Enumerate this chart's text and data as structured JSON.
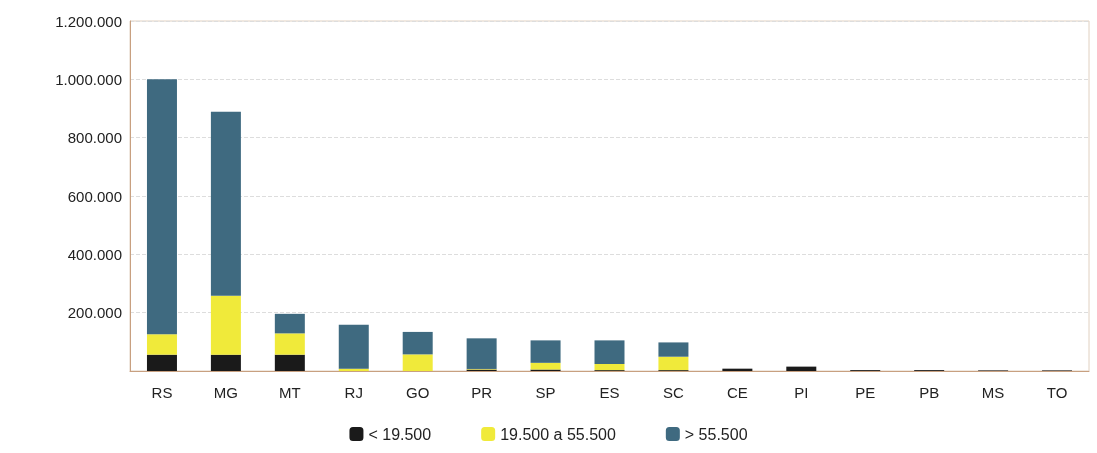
{
  "chart_data": {
    "type": "bar",
    "stacked": true,
    "categories": [
      "RS",
      "MG",
      "MT",
      "RJ",
      "GO",
      "PR",
      "SP",
      "ES",
      "SC",
      "CE",
      "PI",
      "PE",
      "PB",
      "MS",
      "TO"
    ],
    "series": [
      {
        "name": "< 19.500",
        "color": "#1a1a1a",
        "values": [
          56000,
          56000,
          56000,
          null,
          null,
          5000,
          5000,
          3000,
          3000,
          8000,
          15000,
          3000,
          3000,
          2000,
          2000
        ]
      },
      {
        "name": "19.500 a 55.500",
        "color": "#f0ea3a",
        "values": [
          70000,
          202000,
          73000,
          8000,
          57000,
          2000,
          23000,
          21000,
          46000,
          0,
          0,
          0,
          0,
          0,
          0
        ]
      },
      {
        "name": "> 55.500",
        "color": "#3f6a80",
        "values": [
          874000,
          631000,
          67000,
          151000,
          77000,
          105000,
          77000,
          81000,
          49000,
          0,
          0,
          0,
          0,
          0,
          0
        ]
      }
    ],
    "ylim": [
      0,
      1200000
    ],
    "yticks": [
      {
        "value": 0,
        "label": null
      },
      {
        "value": 200000,
        "label": "200.000"
      },
      {
        "value": 400000,
        "label": "400.000"
      },
      {
        "value": 600000,
        "label": "600.000"
      },
      {
        "value": 800000,
        "label": "800.000"
      },
      {
        "value": 1000000,
        "label": "1.000.000"
      },
      {
        "value": 1200000,
        "label": "1.200.000"
      }
    ],
    "grid": "y",
    "legend": "bottom"
  }
}
